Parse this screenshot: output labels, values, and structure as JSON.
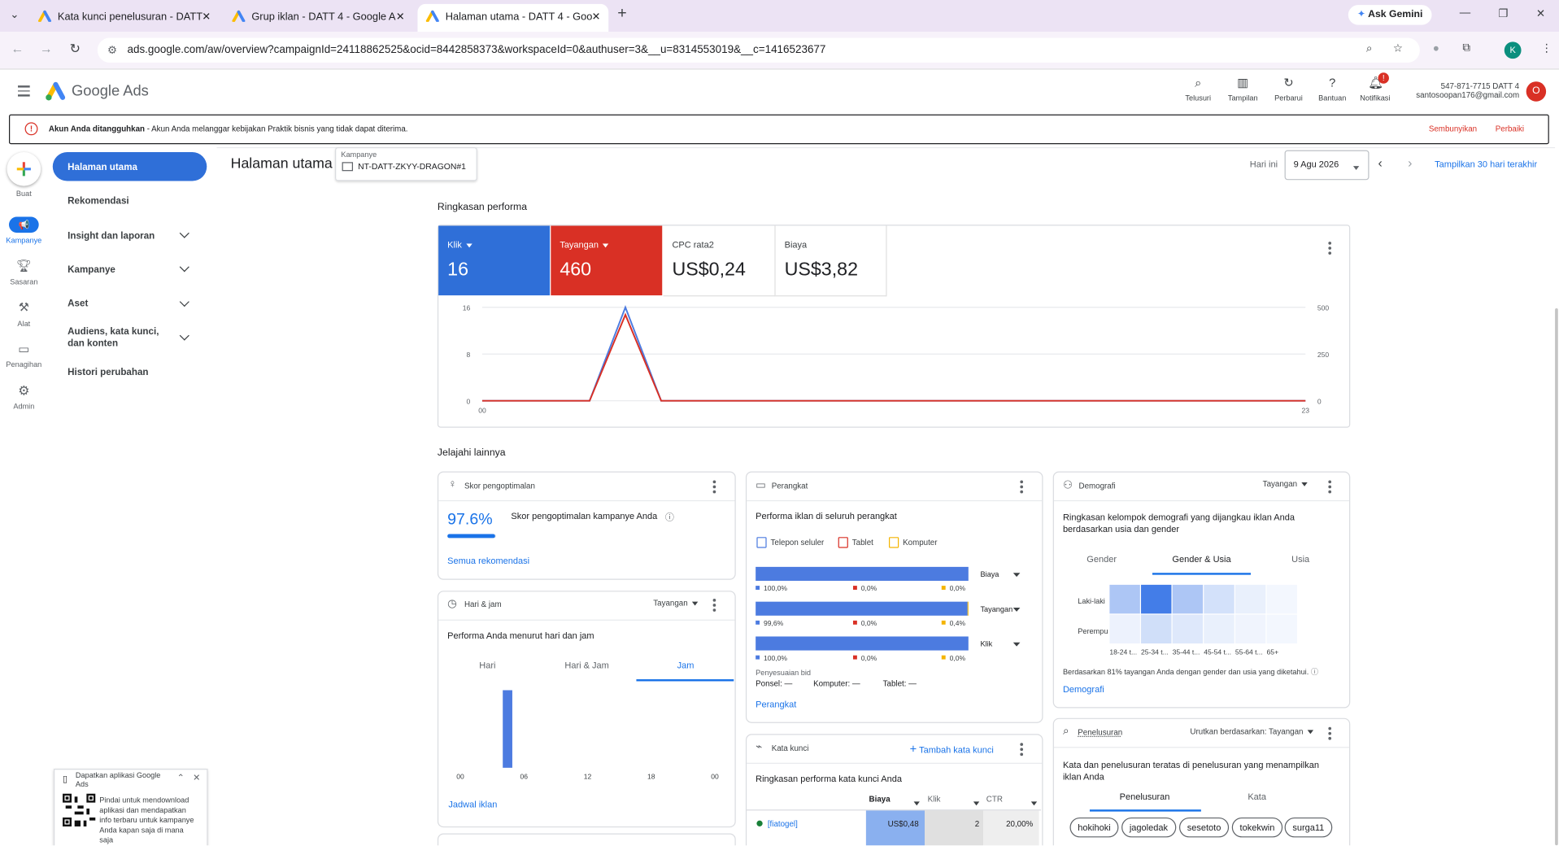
{
  "browser": {
    "tabs": [
      "Kata kunci penelusuran - DATT",
      "Grup iklan - DATT 4 - Google A",
      "Halaman utama - DATT 4 - Goo"
    ],
    "ask_gemini": "Ask Gemini",
    "url": "ads.google.com/aw/overview?campaignId=24118862525&ocid=8442858373&workspaceId=0&authuser=3&__u=8314553019&__c=1416523677",
    "profile": "K"
  },
  "header": {
    "product": "Google Ads",
    "tools": [
      "Telusuri",
      "Tampilan",
      "Perbarui",
      "Bantuan",
      "Notifikasi"
    ],
    "notification_badge": "!",
    "account_id": "547-871-7715 DATT 4",
    "email": "santosoopan176@gmail.com",
    "avatar": "O"
  },
  "alert": {
    "title": "Akun Anda ditangguhkan",
    "message": " - Akun Anda melanggar kebijakan Praktik bisnis yang tidak dapat diterima.",
    "actions": [
      "Sembunyikan",
      "Perbaiki"
    ]
  },
  "rail": [
    "Buat",
    "Kampanye",
    "Sasaran",
    "Alat",
    "Penagihan",
    "Admin"
  ],
  "nav": [
    "Halaman utama",
    "Rekomendasi",
    "Insight dan laporan",
    "Kampanye",
    "Aset",
    "Audiens, kata kunci, dan konten",
    "Histori perubahan"
  ],
  "page": {
    "title": "Halaman utama",
    "campaign_label": "Kampanye",
    "campaign": "NT-DATT-ZKYY-DRAGON#1",
    "date_label": "Hari ini",
    "date": "9 Agu 2026",
    "range_link": "Tampilkan 30 hari terakhir"
  },
  "performance": {
    "title": "Ringkasan performa",
    "metrics": [
      {
        "label": "Klik",
        "value": "16"
      },
      {
        "label": "Tayangan",
        "value": "460"
      },
      {
        "label": "CPC rata2",
        "value": "US$0,24"
      },
      {
        "label": "Biaya",
        "value": "US$3,82"
      }
    ]
  },
  "explore_title": "Jelajahi lainnya",
  "optimization": {
    "title": "Skor pengoptimalan",
    "score": 97.6,
    "score_label": "97.6%",
    "description": "Skor pengoptimalan kampanye Anda",
    "link": "Semua rekomendasi"
  },
  "day_hour": {
    "title": "Hari & jam",
    "metric": "Tayangan",
    "subtitle": "Performa Anda menurut hari dan jam",
    "tabs": [
      "Hari",
      "Hari & Jam",
      "Jam"
    ],
    "link": "Jadwal iklan"
  },
  "devices": {
    "title": "Perangkat",
    "subtitle": "Performa iklan di seluruh perangkat",
    "bid_title": "Penyesuaian bid",
    "bids": [
      "Ponsel: —",
      "Komputer: —",
      "Tablet: —"
    ],
    "link": "Perangkat"
  },
  "keywords": {
    "title": "Kata kunci",
    "add": "Tambah kata kunci",
    "subtitle": "Ringkasan performa kata kunci Anda",
    "columns": [
      "Biaya",
      "Klik",
      "CTR"
    ],
    "rows": [
      [
        "[fiatogel]",
        "US$0,48",
        "2",
        "20,00%"
      ]
    ]
  },
  "demographics": {
    "title": "Demografi",
    "metric": "Tayangan",
    "subtitle": "Ringkasan kelompok demografi yang dijangkau iklan Anda berdasarkan usia dan gender",
    "tabs": [
      "Gender",
      "Gender & Usia",
      "Usia"
    ],
    "note": "Berdasarkan 81% tayangan Anda dengan gender dan usia yang diketahui.",
    "link": "Demografi"
  },
  "searches": {
    "title": "Penelusuran",
    "sort_label": "Urutkan berdasarkan:",
    "sort": "Tayangan",
    "subtitle": "Kata dan penelusuran teratas di penelusuran yang menampilkan iklan Anda",
    "tabs": [
      "Penelusuran",
      "Kata"
    ],
    "terms": [
      "hokihoki",
      "jagoledak",
      "sesetoto",
      "tokekwin",
      "surga11"
    ]
  },
  "promo": {
    "title": "Dapatkan aplikasi Google Ads",
    "text": "Pindai untuk mendownload aplikasi dan mendapatkan info terbaru untuk kampanye Anda kapan saja di mana saja"
  },
  "chart_data": [
    {
      "type": "line",
      "x": [
        0,
        1,
        2,
        3,
        4,
        5,
        6,
        7,
        8,
        9,
        10,
        11,
        12,
        13,
        14,
        15,
        16,
        17,
        18,
        19,
        20,
        21,
        22,
        23
      ],
      "series": [
        {
          "name": "Klik",
          "color": "#4c7be0",
          "values": [
            0,
            0,
            0,
            0,
            16,
            0,
            0,
            0,
            0,
            0,
            0,
            0,
            0,
            0,
            0,
            0,
            0,
            0,
            0,
            0,
            0,
            0,
            0,
            0
          ]
        },
        {
          "name": "Tayangan",
          "color": "#d93025",
          "axis": "y2",
          "values": [
            0,
            0,
            0,
            0,
            460,
            0,
            0,
            0,
            0,
            0,
            0,
            0,
            0,
            0,
            0,
            0,
            0,
            0,
            0,
            0,
            0,
            0,
            0,
            0
          ]
        }
      ],
      "xlim": [
        0,
        23
      ],
      "xticks": [
        {
          "value": 0,
          "label": "00"
        },
        23
      ],
      "ylim": [
        0,
        16
      ],
      "yticks": [
        0,
        8,
        16
      ],
      "y2lim": [
        0,
        500
      ],
      "y2ticks": [
        0,
        250,
        500
      ],
      "grid": true
    },
    {
      "type": "histogram",
      "x": [
        0,
        1,
        2,
        3,
        4,
        5,
        6,
        7,
        8,
        9,
        10,
        11,
        12,
        13,
        14,
        15,
        16,
        17,
        18,
        19,
        20,
        21,
        22,
        23
      ],
      "values": [
        0,
        0,
        0,
        0,
        460,
        0,
        0,
        0,
        0,
        0,
        0,
        0,
        0,
        0,
        0,
        0,
        0,
        0,
        0,
        0,
        0,
        0,
        0,
        0
      ],
      "color": "#4c7be0",
      "xlim": [
        0,
        24
      ],
      "xticks": [
        {
          "value": 0,
          "label": "00"
        },
        {
          "value": 6,
          "label": "06"
        },
        12,
        18,
        {
          "value": 24,
          "label": "00"
        }
      ]
    },
    {
      "type": "stacked-bar",
      "categories": [
        "Biaya",
        "Tayangan",
        "Klik"
      ],
      "series": [
        {
          "name": "Telepon seluler",
          "color": "#4c7be0",
          "values": [
            100,
            99.6,
            100
          ],
          "value_labels": [
            "100,0%",
            "99,6%",
            "100,0%"
          ]
        },
        {
          "name": "Tablet",
          "color": "#d93025",
          "values": [
            0,
            0,
            0
          ],
          "value_labels": [
            "0,0%",
            "0,0%",
            "0,0%"
          ]
        },
        {
          "name": "Komputer",
          "color": "#f4b400",
          "values": [
            0,
            0.4,
            0
          ],
          "value_labels": [
            "0,0%",
            "0,4%",
            "0,0%"
          ]
        }
      ]
    },
    {
      "type": "heatmap",
      "categories": [
        "18-24 t...",
        "25-34 t...",
        "35-44 t...",
        "45-54 t...",
        "55-64 t...",
        "65+"
      ],
      "rows": [
        "Laki-laki",
        "Perempu"
      ],
      "color": "#3b78e7",
      "values": [
        [
          40,
          100,
          40,
          18,
          6,
          0
        ],
        [
          4,
          20,
          12,
          6,
          2,
          0
        ]
      ]
    }
  ]
}
